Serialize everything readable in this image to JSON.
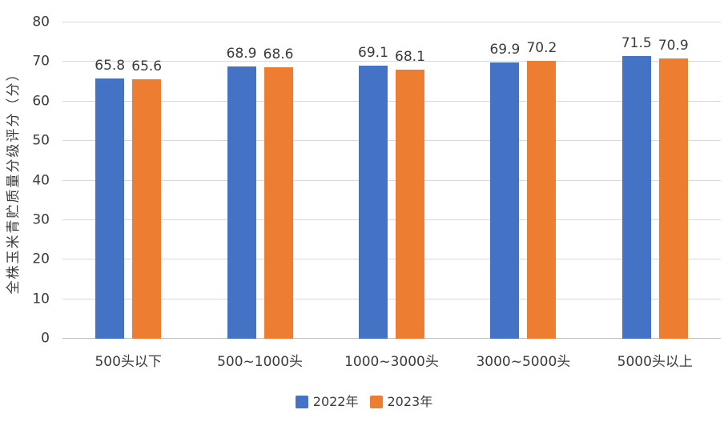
{
  "chart_data": {
    "type": "bar",
    "title": "",
    "xlabel": "",
    "ylabel": "全株玉米青贮质量分级评分（分）",
    "categories": [
      "500头以下",
      "500~1000头",
      "1000~3000头",
      "3000~5000头",
      "5000头以上"
    ],
    "series": [
      {
        "name": "2022年",
        "color": "#4472C4",
        "values": [
          65.8,
          68.9,
          69.1,
          69.9,
          71.5
        ]
      },
      {
        "name": "2023年",
        "color": "#ED7D31",
        "values": [
          65.6,
          68.6,
          68.1,
          70.2,
          70.9
        ]
      }
    ],
    "ylim": [
      0,
      80
    ],
    "yticks": [
      0,
      10,
      20,
      30,
      40,
      50,
      60,
      70,
      80
    ],
    "grid": "horizontal",
    "legend_position": "bottom",
    "data_labels": true
  },
  "colors": {
    "gridline": "#d9d9d9",
    "axis_line": "#bfbfbf",
    "text": "#3b3b3b",
    "background": "#ffffff"
  }
}
